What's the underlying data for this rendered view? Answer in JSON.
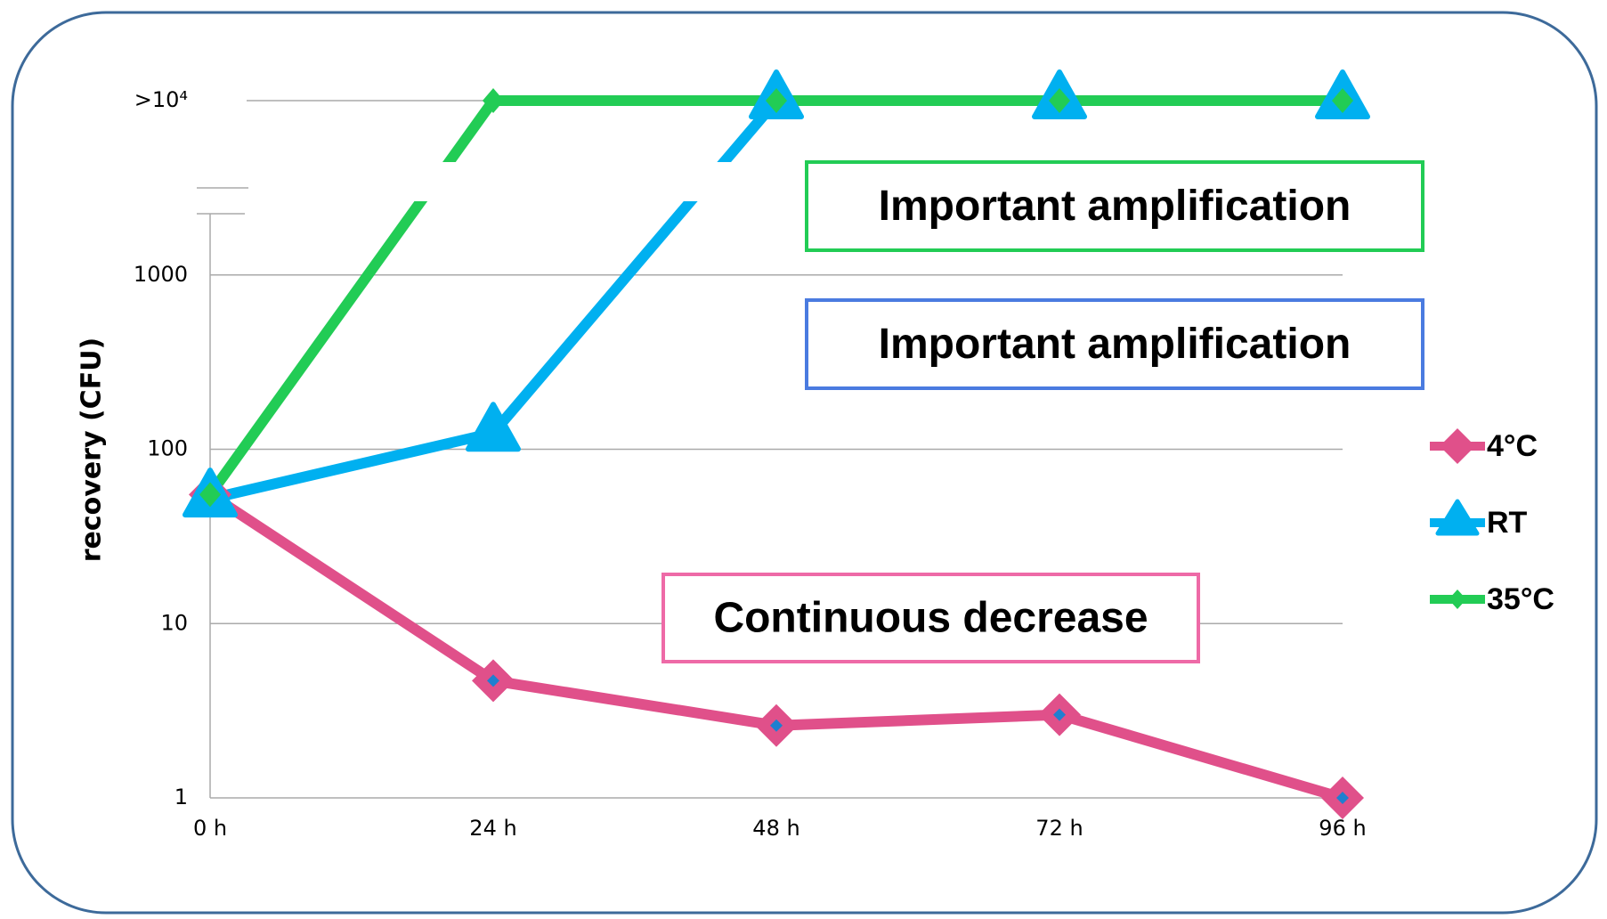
{
  "chart_data": {
    "type": "line",
    "y_label": "recovery (CFU)",
    "categories": [
      "0 h",
      "24 h",
      "48 h",
      "72 h",
      "96 h"
    ],
    "log_scale": true,
    "ylim": [
      1,
      10000
    ],
    "yticks": [
      1,
      10,
      100,
      1000,
      {
        "value": 10000,
        "label": ">10⁴"
      }
    ],
    "grid": true,
    "legend": "right",
    "series": [
      {
        "name": "4°C",
        "color": "#e0508a",
        "marker": "diamond",
        "values": [
          55,
          4.7,
          2.6,
          3.0,
          1
        ]
      },
      {
        "name": "RT",
        "color": "#00b0f0",
        "marker": "triangle",
        "values": [
          52,
          124,
          10000,
          10000,
          10000
        ]
      },
      {
        "name": "35°C",
        "color": "#22cc55",
        "marker": "small-diamond",
        "values": [
          55,
          10000,
          10000,
          10000,
          10000
        ]
      }
    ],
    "annotations": [
      {
        "text": "Important amplification",
        "color": "#22cc55"
      },
      {
        "text": "Important amplification",
        "color": "#4a7be0"
      },
      {
        "text": "Continuous decrease",
        "color": "#ee6aa7"
      }
    ]
  }
}
